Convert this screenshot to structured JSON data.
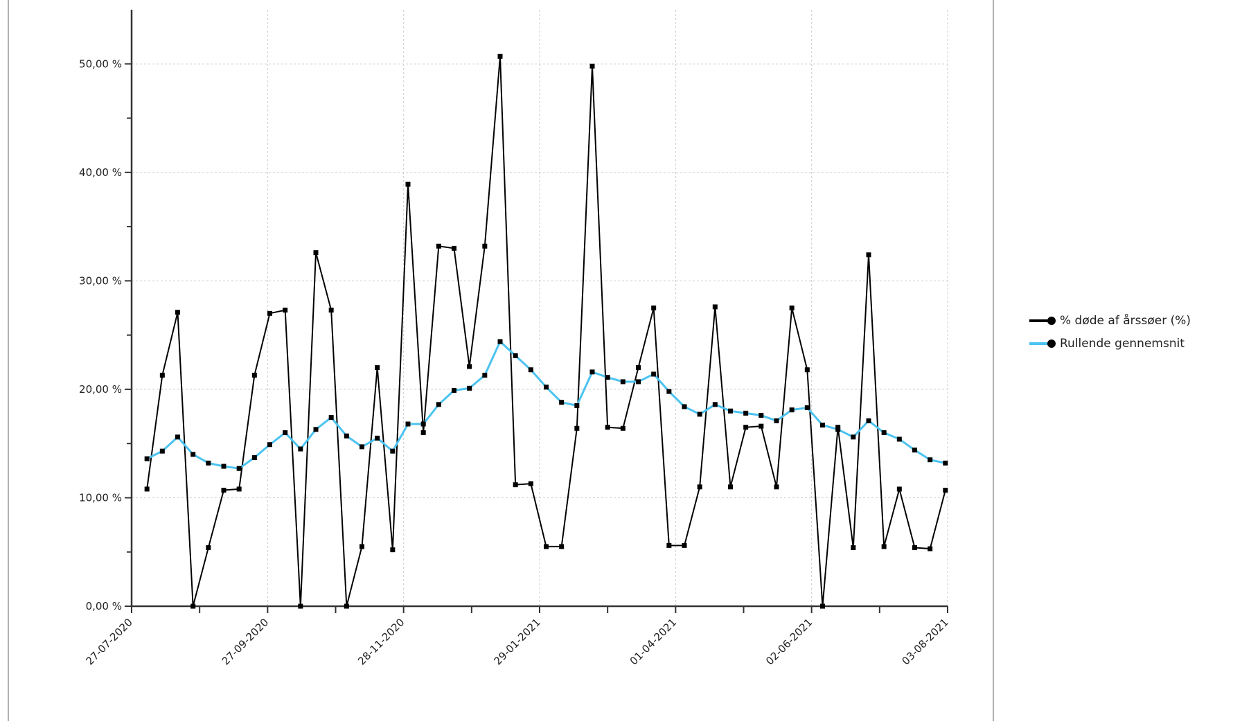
{
  "chart_data": {
    "type": "line",
    "title": "",
    "xlabel": "",
    "ylabel": "",
    "x_tick_labels": [
      "27-07-2020",
      "27-09-2020",
      "28-11-2020",
      "29-01-2021",
      "01-04-2021",
      "02-06-2021",
      "03-08-2021"
    ],
    "y_tick_labels": [
      "0,00 %",
      "10,00 %",
      "20,00 %",
      "30,00 %",
      "40,00 %",
      "50,00 %"
    ],
    "ylim": [
      0,
      55
    ],
    "grid": true,
    "legend_position": "right",
    "x_dates": [
      "2020-08-03",
      "2020-08-10",
      "2020-08-17",
      "2020-08-24",
      "2020-08-31",
      "2020-09-07",
      "2020-09-14",
      "2020-09-21",
      "2020-09-28",
      "2020-10-05",
      "2020-10-12",
      "2020-10-19",
      "2020-10-26",
      "2020-11-02",
      "2020-11-09",
      "2020-11-16",
      "2020-11-23",
      "2020-11-30",
      "2020-12-07",
      "2020-12-14",
      "2020-12-21",
      "2020-12-28",
      "2021-01-04",
      "2021-01-11",
      "2021-01-18",
      "2021-01-25",
      "2021-02-01",
      "2021-02-08",
      "2021-02-15",
      "2021-02-22",
      "2021-03-01",
      "2021-03-08",
      "2021-03-15",
      "2021-03-22",
      "2021-03-29",
      "2021-04-05",
      "2021-04-12",
      "2021-04-19",
      "2021-04-26",
      "2021-05-03",
      "2021-05-10",
      "2021-05-17",
      "2021-05-24",
      "2021-05-31",
      "2021-06-07",
      "2021-06-14",
      "2021-06-21",
      "2021-06-28",
      "2021-07-05",
      "2021-07-12",
      "2021-07-19",
      "2021-07-26",
      "2021-08-02"
    ],
    "series": [
      {
        "name": "% døde af årssøer (%)",
        "color": "#000000",
        "values": [
          10.8,
          21.3,
          27.1,
          0.0,
          5.4,
          10.7,
          10.8,
          21.3,
          27.0,
          27.3,
          0.0,
          32.6,
          27.3,
          0.0,
          5.5,
          22.0,
          5.2,
          38.9,
          16.0,
          33.2,
          33.0,
          22.1,
          33.2,
          50.7,
          11.2,
          11.3,
          5.5,
          5.5,
          16.4,
          49.8,
          16.5,
          16.4,
          22.0,
          27.5,
          5.6,
          5.6,
          11.0,
          27.6,
          11.0,
          16.5,
          16.6,
          11.0,
          27.5,
          21.8,
          0.0,
          16.5,
          5.4,
          32.4,
          5.5,
          10.8,
          5.4,
          5.3,
          10.7
        ]
      },
      {
        "name": "Rullende gennemsnit",
        "color": "#4cc3f0",
        "values": [
          13.6,
          14.3,
          15.6,
          14.0,
          13.2,
          12.9,
          12.7,
          13.7,
          14.9,
          16.0,
          14.5,
          16.3,
          17.4,
          15.7,
          14.7,
          15.5,
          14.3,
          16.8,
          16.8,
          18.6,
          19.9,
          20.1,
          21.3,
          24.4,
          23.1,
          21.8,
          20.2,
          18.8,
          18.5,
          21.6,
          21.1,
          20.7,
          20.7,
          21.4,
          19.8,
          18.4,
          17.7,
          18.6,
          18.0,
          17.8,
          17.6,
          17.1,
          18.1,
          18.3,
          16.7,
          16.3,
          15.6,
          17.1,
          16.0,
          15.4,
          14.4,
          13.5,
          13.2
        ]
      }
    ]
  }
}
